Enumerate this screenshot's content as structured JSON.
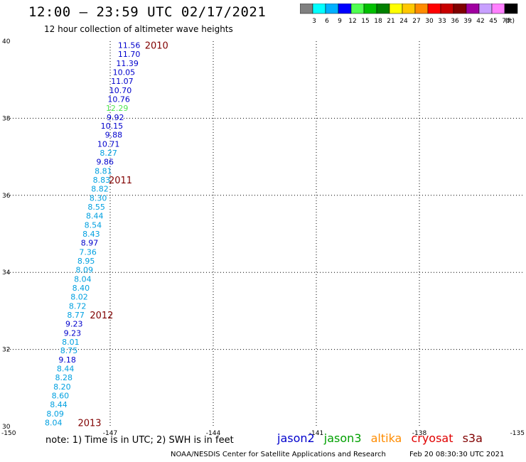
{
  "header": {
    "title": "12:00 – 23:59 UTC 02/17/2021",
    "subtitle": "12 hour collection of altimeter wave heights"
  },
  "colorbar": {
    "colors": [
      "#808080",
      "#00ffff",
      "#00b0ff",
      "#0000ff",
      "#50ff50",
      "#00c000",
      "#008000",
      "#ffff00",
      "#ffc800",
      "#ff8c00",
      "#ff0000",
      "#c80000",
      "#800000",
      "#a000a0",
      "#c8a0ff",
      "#ff80ff",
      "#000000"
    ],
    "labels": [
      "3",
      "6",
      "9",
      "12",
      "15",
      "18",
      "21",
      "24",
      "27",
      "30",
      "33",
      "36",
      "39",
      "42",
      "45",
      "70"
    ],
    "unit": "(ft)"
  },
  "footer": {
    "note": "note:  1) Time is in UTC;  2) SWH is in feet",
    "credit": "NOAA/NESDIS Center for Satellite Applications and Research",
    "timestamp": "Feb 20 08:30:30 UTC 2021"
  },
  "legend": [
    {
      "name": "jason2",
      "color": "#0000cc"
    },
    {
      "name": "jason3",
      "color": "#00a000"
    },
    {
      "name": "altika",
      "color": "#ff8c00"
    },
    {
      "name": "cryosat",
      "color": "#e00000"
    },
    {
      "name": "s3a",
      "color": "#800000"
    }
  ],
  "chart_data": {
    "type": "scatter",
    "xlim": [
      -150,
      -135
    ],
    "ylim": [
      30,
      40
    ],
    "x_ticks": [
      -147,
      -144,
      -141,
      -138
    ],
    "y_ticks": [
      32,
      34,
      36,
      38
    ],
    "x_tick_labels": [
      "-150",
      "-147",
      "-144",
      "-141",
      "-138",
      "-135"
    ],
    "y_tick_labels": [
      "30",
      "32",
      "34",
      "36",
      "38",
      "40"
    ],
    "grid": true,
    "series": [
      {
        "name": "jason2",
        "points": [
          {
            "lon": -146.45,
            "lat": 39.9,
            "value": "11.56",
            "color": "#0000cc"
          },
          {
            "lon": -146.45,
            "lat": 39.67,
            "value": "11.70",
            "color": "#0000cc"
          },
          {
            "lon": -146.5,
            "lat": 39.43,
            "value": "11.39",
            "color": "#0000cc"
          },
          {
            "lon": -146.6,
            "lat": 39.2,
            "value": "10.05",
            "color": "#0000cc"
          },
          {
            "lon": -146.65,
            "lat": 38.97,
            "value": "11.07",
            "color": "#0000cc"
          },
          {
            "lon": -146.7,
            "lat": 38.73,
            "value": "10.70",
            "color": "#0000cc"
          },
          {
            "lon": -146.75,
            "lat": 38.5,
            "value": "10.76",
            "color": "#0000cc"
          },
          {
            "lon": -146.8,
            "lat": 38.27,
            "value": "12.29",
            "color": "#50e650"
          },
          {
            "lon": -146.85,
            "lat": 38.03,
            "value": "9.92",
            "color": "#0000cc"
          },
          {
            "lon": -146.95,
            "lat": 37.8,
            "value": "10.15",
            "color": "#0000cc"
          },
          {
            "lon": -146.9,
            "lat": 37.57,
            "value": "9.88",
            "color": "#0000cc"
          },
          {
            "lon": -147.05,
            "lat": 37.33,
            "value": "10.71",
            "color": "#0000cc"
          },
          {
            "lon": -147.05,
            "lat": 37.1,
            "value": "8.27",
            "color": "#00a0e0"
          },
          {
            "lon": -147.15,
            "lat": 36.87,
            "value": "9.86",
            "color": "#0000cc"
          },
          {
            "lon": -147.2,
            "lat": 36.63,
            "value": "8.81",
            "color": "#00a0e0"
          },
          {
            "lon": -147.25,
            "lat": 36.4,
            "value": "8.83",
            "color": "#00a0e0"
          },
          {
            "lon": -147.3,
            "lat": 36.17,
            "value": "8.82",
            "color": "#00a0e0"
          },
          {
            "lon": -147.35,
            "lat": 35.93,
            "value": "8.30",
            "color": "#00a0e0"
          },
          {
            "lon": -147.4,
            "lat": 35.7,
            "value": "8.55",
            "color": "#00a0e0"
          },
          {
            "lon": -147.45,
            "lat": 35.47,
            "value": "8.44",
            "color": "#00a0e0"
          },
          {
            "lon": -147.5,
            "lat": 35.23,
            "value": "8.54",
            "color": "#00a0e0"
          },
          {
            "lon": -147.55,
            "lat": 35.0,
            "value": "8.43",
            "color": "#00a0e0"
          },
          {
            "lon": -147.6,
            "lat": 34.77,
            "value": "8.97",
            "color": "#0000cc"
          },
          {
            "lon": -147.65,
            "lat": 34.53,
            "value": "7.36",
            "color": "#00a0e0"
          },
          {
            "lon": -147.7,
            "lat": 34.3,
            "value": "8.95",
            "color": "#00a0e0"
          },
          {
            "lon": -147.75,
            "lat": 34.07,
            "value": "8.09",
            "color": "#00a0e0"
          },
          {
            "lon": -147.8,
            "lat": 33.83,
            "value": "8.04",
            "color": "#00a0e0"
          },
          {
            "lon": -147.85,
            "lat": 33.6,
            "value": "8.40",
            "color": "#00a0e0"
          },
          {
            "lon": -147.9,
            "lat": 33.37,
            "value": "8.02",
            "color": "#00a0e0"
          },
          {
            "lon": -147.95,
            "lat": 33.13,
            "value": "8.72",
            "color": "#00a0e0"
          },
          {
            "lon": -148.0,
            "lat": 32.9,
            "value": "8.77",
            "color": "#00a0e0"
          },
          {
            "lon": -148.05,
            "lat": 32.67,
            "value": "9.23",
            "color": "#0000cc"
          },
          {
            "lon": -148.1,
            "lat": 32.43,
            "value": "9.23",
            "color": "#0000cc"
          },
          {
            "lon": -148.15,
            "lat": 32.2,
            "value": "8.01",
            "color": "#00a0e0"
          },
          {
            "lon": -148.2,
            "lat": 31.97,
            "value": "8.75",
            "color": "#00a0e0"
          },
          {
            "lon": -148.25,
            "lat": 31.73,
            "value": "9.18",
            "color": "#0000cc"
          },
          {
            "lon": -148.3,
            "lat": 31.5,
            "value": "8.44",
            "color": "#00a0e0"
          },
          {
            "lon": -148.35,
            "lat": 31.27,
            "value": "8.28",
            "color": "#00a0e0"
          },
          {
            "lon": -148.4,
            "lat": 31.03,
            "value": "8.20",
            "color": "#00a0e0"
          },
          {
            "lon": -148.45,
            "lat": 30.8,
            "value": "8.60",
            "color": "#00a0e0"
          },
          {
            "lon": -148.5,
            "lat": 30.57,
            "value": "8.44",
            "color": "#00a0e0"
          },
          {
            "lon": -148.6,
            "lat": 30.33,
            "value": "8.09",
            "color": "#00a0e0"
          },
          {
            "lon": -148.65,
            "lat": 30.1,
            "value": "8.04",
            "color": "#00a0e0"
          }
        ]
      }
    ],
    "annotations": [
      {
        "text": "2010",
        "lon": -145.65,
        "lat": 39.9,
        "color": "#800000"
      },
      {
        "text": "2011",
        "lon": -146.7,
        "lat": 36.4,
        "color": "#800000"
      },
      {
        "text": "2012",
        "lon": -147.25,
        "lat": 32.9,
        "color": "#800000"
      },
      {
        "text": "2013",
        "lon": -147.6,
        "lat": 30.1,
        "color": "#800000"
      }
    ]
  }
}
